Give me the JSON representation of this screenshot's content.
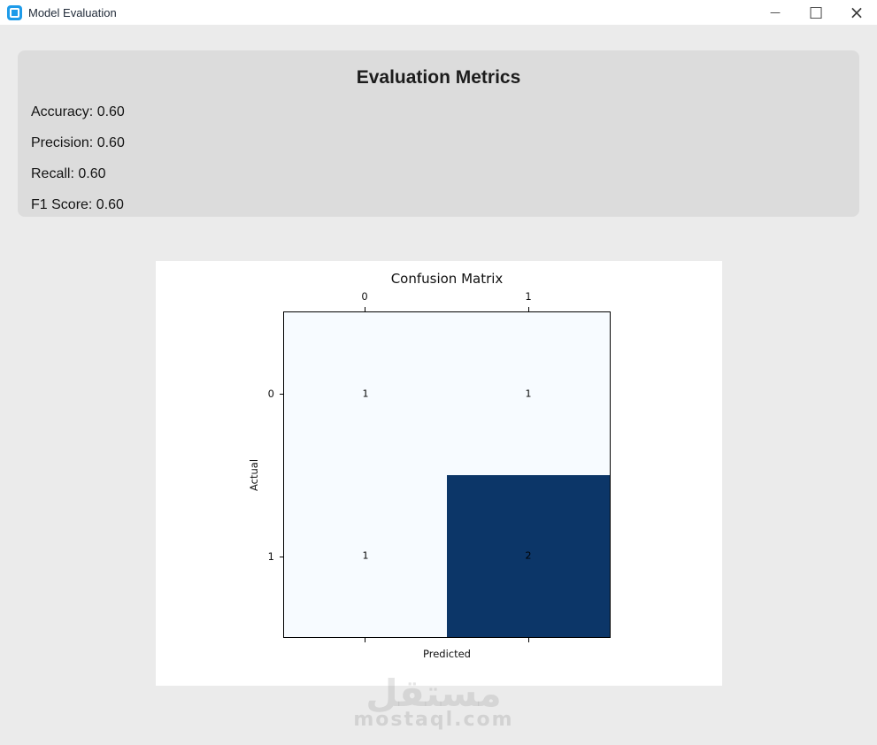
{
  "window": {
    "title": "Model Evaluation",
    "controls": {
      "minimize_glyph": "—",
      "maximize_glyph": "□",
      "close_glyph": "×"
    }
  },
  "metrics_panel": {
    "title": "Evaluation Metrics",
    "background": "#dcdcdc",
    "items": [
      {
        "label": "Accuracy",
        "value": "0.60",
        "text": "Accuracy: 0.60"
      },
      {
        "label": "Precision",
        "value": "0.60",
        "text": "Precision: 0.60"
      },
      {
        "label": "Recall",
        "value": "0.60",
        "text": "Recall: 0.60"
      },
      {
        "label": "F1 Score",
        "value": "0.60",
        "text": "F1 Score: 0.60"
      }
    ]
  },
  "chart_data": {
    "type": "heatmap",
    "title": "Confusion Matrix",
    "xlabel": "Predicted",
    "ylabel": "Actual",
    "x_ticks": [
      "0",
      "1"
    ],
    "y_ticks": [
      "0",
      "1"
    ],
    "x_tick_position": "top",
    "matrix": [
      [
        1,
        1
      ],
      [
        1,
        2
      ]
    ],
    "value_range": [
      1,
      2
    ],
    "colormap": "Blues",
    "cell_colors": [
      [
        "#f7fbff",
        "#f7fbff"
      ],
      [
        "#f7fbff",
        "#0c3668"
      ]
    ],
    "grid": false,
    "figure_background": "#ffffff"
  },
  "watermark": {
    "logo_text": "مستقل",
    "domain": "mostaql.com"
  },
  "colors": {
    "window_background": "#ebebeb",
    "titlebar_background": "#ffffff",
    "app_icon_blue": "#1e9be9",
    "heatmap_low": "#f7fbff",
    "heatmap_high": "#0c3668"
  }
}
